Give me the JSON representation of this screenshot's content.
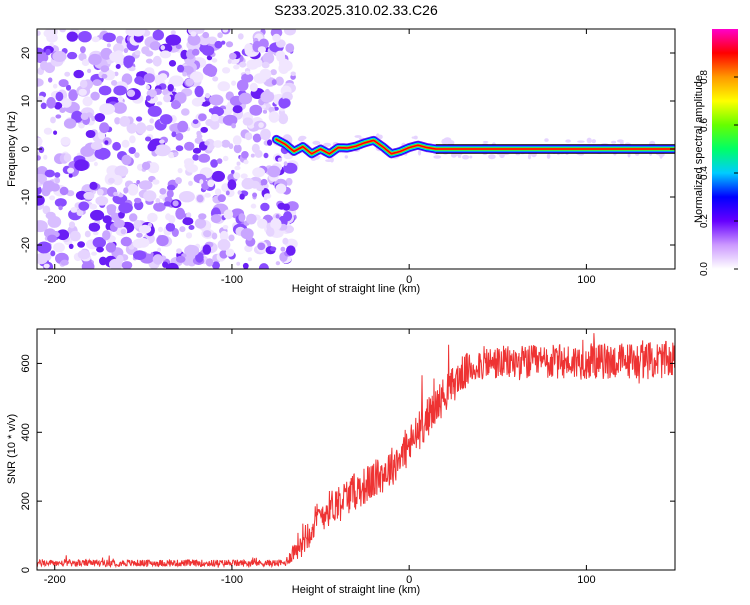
{
  "title": "S233.2025.310.02.33.C26",
  "chart_data": [
    {
      "type": "heatmap",
      "xlabel": "Height of straight line (km)",
      "ylabel": "Frequency (Hz)",
      "xlim": [
        -210,
        150
      ],
      "ylim": [
        -25,
        25
      ],
      "xticks": [
        -200,
        -100,
        0,
        100
      ],
      "yticks": [
        -20,
        -10,
        0,
        10,
        20
      ],
      "noise_region_x": [
        -210,
        -65
      ],
      "carrier_path": [
        {
          "x": -75,
          "y": 2
        },
        {
          "x": -70,
          "y": 1
        },
        {
          "x": -65,
          "y": -0.5
        },
        {
          "x": -60,
          "y": 0.5
        },
        {
          "x": -55,
          "y": -1
        },
        {
          "x": -50,
          "y": 0
        },
        {
          "x": -45,
          "y": -1
        },
        {
          "x": -40,
          "y": 0.3
        },
        {
          "x": -35,
          "y": 0.2
        },
        {
          "x": -30,
          "y": 0.6
        },
        {
          "x": -25,
          "y": 1.3
        },
        {
          "x": -20,
          "y": 1.8
        },
        {
          "x": -15,
          "y": 0.5
        },
        {
          "x": -10,
          "y": -1
        },
        {
          "x": -5,
          "y": -0.5
        },
        {
          "x": 0,
          "y": 0.3
        },
        {
          "x": 5,
          "y": 0.8
        },
        {
          "x": 10,
          "y": 0.3
        },
        {
          "x": 15,
          "y": 0
        },
        {
          "x": 150,
          "y": 0
        }
      ],
      "colorbar": {
        "label": "Normalized spectral amplitude",
        "range": [
          0,
          1
        ],
        "ticks": [
          0.0,
          0.2,
          0.4,
          0.6,
          0.8
        ],
        "tick_labels": [
          "0.0",
          "0.2",
          "0.4",
          "0.6",
          "0.8"
        ],
        "colors": [
          "#ffffff",
          "#cc99ff",
          "#6600ff",
          "#0000ff",
          "#00ccff",
          "#00ff66",
          "#66ff00",
          "#ffff00",
          "#ff9900",
          "#ff0000",
          "#ff00cc"
        ]
      }
    },
    {
      "type": "line",
      "xlabel": "Height of straight line (km)",
      "ylabel": "SNR (10 * v/v)",
      "xlim": [
        -210,
        150
      ],
      "ylim": [
        0,
        700
      ],
      "xticks": [
        -200,
        -100,
        0,
        100
      ],
      "yticks": [
        0,
        200,
        400,
        600
      ],
      "line_color": "#ee3333",
      "trend": [
        {
          "x": -210,
          "y": 20
        },
        {
          "x": -70,
          "y": 20
        },
        {
          "x": -60,
          "y": 90
        },
        {
          "x": -50,
          "y": 160
        },
        {
          "x": -40,
          "y": 200
        },
        {
          "x": -30,
          "y": 230
        },
        {
          "x": -20,
          "y": 260
        },
        {
          "x": -10,
          "y": 300
        },
        {
          "x": 0,
          "y": 360
        },
        {
          "x": 10,
          "y": 440
        },
        {
          "x": 20,
          "y": 510
        },
        {
          "x": 30,
          "y": 570
        },
        {
          "x": 40,
          "y": 600
        },
        {
          "x": 150,
          "y": 610
        }
      ],
      "noise_amplitude": [
        {
          "x": -210,
          "y": 10
        },
        {
          "x": -70,
          "y": 10
        },
        {
          "x": -60,
          "y": 50
        },
        {
          "x": 0,
          "y": 60
        },
        {
          "x": 40,
          "y": 50
        },
        {
          "x": 150,
          "y": 55
        }
      ]
    }
  ]
}
